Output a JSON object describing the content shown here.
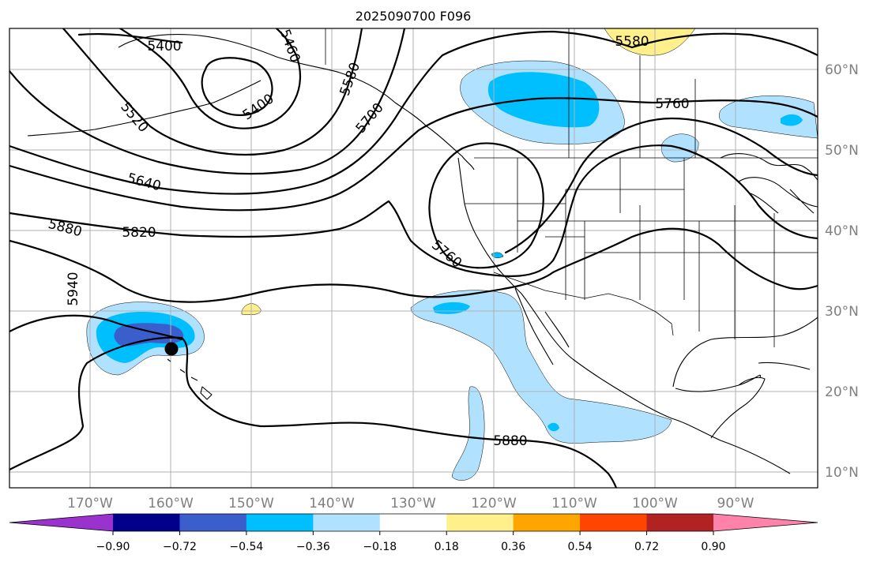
{
  "title": "2025090700 F096",
  "lon_labels": [
    "170°W",
    "160°W",
    "150°W",
    "140°W",
    "130°W",
    "120°W",
    "110°W",
    "100°W",
    "90°W"
  ],
  "lat_labels": [
    "60°N",
    "50°N",
    "40°N",
    "30°N",
    "20°N",
    "10°N"
  ],
  "contour_labels": [
    "5400",
    "5460",
    "5400",
    "5520",
    "5580",
    "5700",
    "5580",
    "5760",
    "5640",
    "5820",
    "5880",
    "5760",
    "5940",
    "5880"
  ],
  "colorbar": {
    "ticks": [
      "−0.90",
      "−0.72",
      "−0.54",
      "−0.36",
      "−0.18",
      "0.18",
      "0.36",
      "0.54",
      "0.72",
      "0.90"
    ],
    "colors": [
      "#9a32cd",
      "#00008b",
      "#3a5fcd",
      "#00bfff",
      "#b0e2ff",
      "#ffffff",
      "#fff08c",
      "#ffa500",
      "#ff4500",
      "#b22222",
      "#ff82ab"
    ]
  },
  "marker": "storm-position-dot"
}
